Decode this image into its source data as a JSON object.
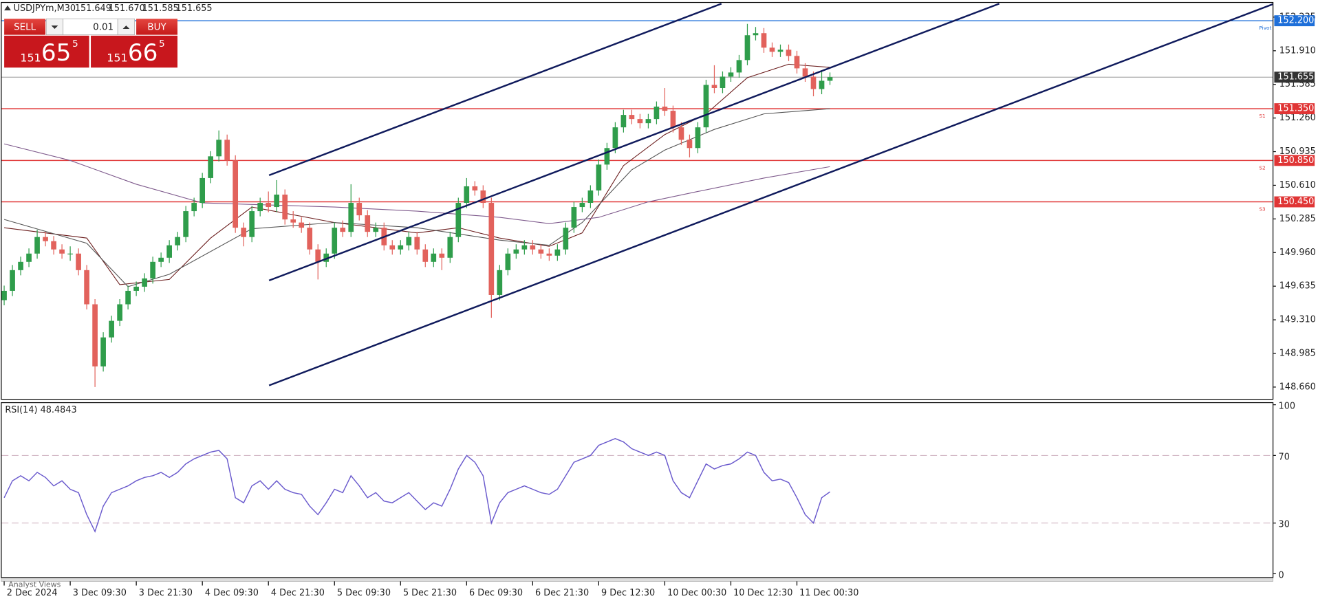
{
  "header": {
    "symbol": "USDJPYm,M30",
    "quote": [
      "151.649",
      "151.670",
      "151.585",
      "151.655"
    ]
  },
  "trade_panel": {
    "sell": "SELL",
    "buy": "BUY",
    "lot": "0.01",
    "bid": [
      "151",
      "65",
      "5"
    ],
    "ask": [
      "151",
      "66",
      "5"
    ]
  },
  "tab": "Analyst Views",
  "chart_data": {
    "type": "candlestick",
    "xlim": [
      -0.3,
      153.6
    ],
    "ylim": [
      148.546,
      152.251
    ],
    "xticks": [
      {
        "value": 0,
        "label": "2 Dec 2024"
      },
      {
        "value": 8,
        "label": "3 Dec 09:30"
      },
      {
        "value": 16,
        "label": "3 Dec 21:30"
      },
      {
        "value": 24,
        "label": "4 Dec 09:30"
      },
      {
        "value": 32,
        "label": "4 Dec 21:30"
      },
      {
        "value": 40,
        "label": "5 Dec 09:30"
      },
      {
        "value": 48,
        "label": "5 Dec 21:30"
      },
      {
        "value": 56,
        "label": "6 Dec 09:30"
      },
      {
        "value": 64,
        "label": "6 Dec 21:30"
      },
      {
        "value": 72,
        "label": "9 Dec 12:30"
      },
      {
        "value": 80,
        "label": "10 Dec 00:30"
      },
      {
        "value": 88,
        "label": "10 Dec 12:30"
      },
      {
        "value": 96,
        "label": "11 Dec 00:30"
      }
    ],
    "yticks": [
      {
        "value": 152.235,
        "label": "152.235"
      },
      {
        "value": 151.91,
        "label": "151.910"
      },
      {
        "value": 151.585,
        "label": "151.585"
      },
      {
        "value": 151.26,
        "label": "151.260"
      },
      {
        "value": 150.935,
        "label": "150.935"
      },
      {
        "value": 150.61,
        "label": "150.610"
      },
      {
        "value": 150.285,
        "label": "150.285"
      },
      {
        "value": 149.96,
        "label": "149.960"
      },
      {
        "value": 149.635,
        "label": "149.635"
      },
      {
        "value": 149.31,
        "label": "149.310"
      },
      {
        "value": 148.985,
        "label": "148.985"
      },
      {
        "value": 148.66,
        "label": "148.660"
      }
    ],
    "colors": {
      "up": "#2f9d4b",
      "down": "#e2625c"
    },
    "candles": {
      "open": [
        149.5,
        149.59,
        149.79,
        149.87,
        149.95,
        150.11,
        150.07,
        149.99,
        149.95,
        149.95,
        149.79,
        149.46,
        148.86,
        149.14,
        149.3,
        149.46,
        149.59,
        149.63,
        149.71,
        149.87,
        149.91,
        150.03,
        150.11,
        150.36,
        150.44,
        150.68,
        150.89,
        151.05,
        150.85,
        150.2,
        150.11,
        150.36,
        150.44,
        150.4,
        150.52,
        150.28,
        150.25,
        150.2,
        149.99,
        149.87,
        149.95,
        150.2,
        150.16,
        150.44,
        150.32,
        150.16,
        150.2,
        150.03,
        149.99,
        150.03,
        150.11,
        149.99,
        149.87,
        149.95,
        149.91,
        150.11,
        150.44,
        150.6,
        150.56,
        150.44,
        149.55,
        149.79,
        149.95,
        149.99,
        150.03,
        149.99,
        149.95,
        149.93,
        149.99,
        150.2,
        150.4,
        150.44,
        150.56,
        150.81,
        150.97,
        151.17,
        151.29,
        151.25,
        151.21,
        151.25,
        151.37,
        151.33,
        151.17,
        151.05,
        150.97,
        151.17,
        151.58,
        151.55,
        151.66,
        151.7,
        151.82,
        152.06,
        152.08,
        151.94,
        151.9,
        151.92,
        151.86,
        151.74,
        151.66,
        151.54,
        151.62
      ],
      "high": [
        149.64,
        149.84,
        149.92,
        150.0,
        150.18,
        150.16,
        150.12,
        150.04,
        150.02,
        150.0,
        149.84,
        149.51,
        149.19,
        149.35,
        149.51,
        149.64,
        149.68,
        149.76,
        149.92,
        149.96,
        150.08,
        150.16,
        150.41,
        150.49,
        150.73,
        150.94,
        151.14,
        151.1,
        150.9,
        150.25,
        150.41,
        150.49,
        150.55,
        150.66,
        150.57,
        150.36,
        150.3,
        150.25,
        150.04,
        150.0,
        150.25,
        150.27,
        150.62,
        150.49,
        150.37,
        150.25,
        150.25,
        150.08,
        150.08,
        150.16,
        150.16,
        150.04,
        150.0,
        150.0,
        150.16,
        150.49,
        150.68,
        150.65,
        150.61,
        150.49,
        149.84,
        150.0,
        150.04,
        150.08,
        150.08,
        150.04,
        150.0,
        150.04,
        150.25,
        150.45,
        150.49,
        150.61,
        150.86,
        151.02,
        151.22,
        151.34,
        151.34,
        151.3,
        151.3,
        151.42,
        151.55,
        151.38,
        151.22,
        151.1,
        151.22,
        151.63,
        151.77,
        151.71,
        151.75,
        151.87,
        152.17,
        152.14,
        152.13,
        151.99,
        151.97,
        151.97,
        151.91,
        151.79,
        151.71,
        151.72,
        151.7
      ],
      "low": [
        149.45,
        149.54,
        149.74,
        149.82,
        149.9,
        150.02,
        149.94,
        149.9,
        149.88,
        149.74,
        149.41,
        148.66,
        148.81,
        149.09,
        149.25,
        149.41,
        149.54,
        149.58,
        149.66,
        149.82,
        149.86,
        149.98,
        150.06,
        150.31,
        150.39,
        150.63,
        150.84,
        150.8,
        150.15,
        150.02,
        150.06,
        150.31,
        150.35,
        150.35,
        150.23,
        150.2,
        150.15,
        149.94,
        149.7,
        149.82,
        149.9,
        150.11,
        150.11,
        150.27,
        150.11,
        150.11,
        149.98,
        149.94,
        149.94,
        149.98,
        149.94,
        149.82,
        149.82,
        149.79,
        149.86,
        150.06,
        150.39,
        150.51,
        150.39,
        149.33,
        149.5,
        149.74,
        149.9,
        149.94,
        149.94,
        149.9,
        149.88,
        149.88,
        149.94,
        150.15,
        150.35,
        150.39,
        150.51,
        150.76,
        150.92,
        151.12,
        151.2,
        151.16,
        151.16,
        151.2,
        151.28,
        151.12,
        151.0,
        150.88,
        150.92,
        151.12,
        151.5,
        151.5,
        151.61,
        151.65,
        151.77,
        152.01,
        151.89,
        151.85,
        151.85,
        151.81,
        151.69,
        151.61,
        151.47,
        151.49,
        151.58
      ],
      "close": [
        149.59,
        149.79,
        149.87,
        149.95,
        150.11,
        150.07,
        149.99,
        149.95,
        149.95,
        149.79,
        149.46,
        148.86,
        149.14,
        149.3,
        149.46,
        149.59,
        149.63,
        149.71,
        149.87,
        149.91,
        150.03,
        150.11,
        150.36,
        150.44,
        150.68,
        150.89,
        151.05,
        150.85,
        150.2,
        150.11,
        150.36,
        150.44,
        150.4,
        150.52,
        150.28,
        150.25,
        150.2,
        149.99,
        149.87,
        149.95,
        150.2,
        150.16,
        150.44,
        150.32,
        150.16,
        150.2,
        150.03,
        149.99,
        150.03,
        150.11,
        149.99,
        149.87,
        149.95,
        149.91,
        150.11,
        150.44,
        150.6,
        150.56,
        150.44,
        149.55,
        149.79,
        149.95,
        149.99,
        150.03,
        149.99,
        149.95,
        149.93,
        149.99,
        150.2,
        150.4,
        150.44,
        150.56,
        150.81,
        150.97,
        151.17,
        151.29,
        151.25,
        151.21,
        151.25,
        151.37,
        151.33,
        151.17,
        151.05,
        150.97,
        151.17,
        151.58,
        151.55,
        151.66,
        151.7,
        151.82,
        152.06,
        152.08,
        151.94,
        151.9,
        151.92,
        151.86,
        151.74,
        151.66,
        151.54,
        151.62,
        151.655
      ]
    },
    "moving_averages": [
      {
        "color": "#6b1d1d",
        "x": [
          0,
          10,
          14,
          20,
          25,
          30,
          40,
          50,
          55,
          60,
          66,
          70,
          75,
          80,
          85,
          90,
          95,
          100
        ],
        "values": [
          150.2,
          150.1,
          149.65,
          149.7,
          150.1,
          150.4,
          150.25,
          150.15,
          150.2,
          150.1,
          150.02,
          150.15,
          150.8,
          151.1,
          151.3,
          151.65,
          151.78,
          151.75
        ]
      },
      {
        "color": "#555555",
        "x": [
          0,
          10,
          15,
          20,
          30,
          40,
          50,
          60,
          66,
          70,
          76,
          80,
          86,
          92,
          100
        ],
        "values": [
          150.28,
          150.05,
          149.63,
          149.75,
          150.19,
          150.25,
          150.2,
          150.08,
          150.03,
          150.25,
          150.76,
          150.95,
          151.15,
          151.3,
          151.35
        ]
      },
      {
        "color": "#7e5a8c",
        "x": [
          0,
          8,
          16,
          24,
          32,
          40,
          50,
          60,
          66,
          72,
          78,
          84,
          92,
          100
        ],
        "values": [
          151.01,
          150.85,
          150.62,
          150.44,
          150.42,
          150.4,
          150.36,
          150.3,
          150.24,
          150.3,
          150.45,
          150.55,
          150.68,
          150.79
        ]
      }
    ],
    "trend_lines": [
      {
        "color": "#0f1a5c",
        "x": [
          32.08,
          86.86
        ],
        "values": [
          150.707,
          152.365
        ]
      },
      {
        "color": "#0f1a5c",
        "x": [
          32.08,
          120.5
        ],
        "values": [
          149.69,
          152.365
        ]
      },
      {
        "color": "#0f1a5c",
        "x": [
          32.08,
          153.8
        ],
        "values": [
          148.676,
          152.365
        ]
      }
    ],
    "levels": [
      {
        "name": "Pivot",
        "color": "#1e6fd9",
        "value": {
          "value": 152.2,
          "label": "152.200"
        }
      },
      {
        "name": "S1",
        "color": "#e03535",
        "value": {
          "value": 151.35,
          "label": "151.350"
        }
      },
      {
        "name": "S2",
        "color": "#e03535",
        "value": {
          "value": 150.85,
          "label": "150.850"
        }
      },
      {
        "name": "S3",
        "color": "#e03535",
        "value": {
          "value": 150.45,
          "label": "150.450"
        }
      }
    ],
    "current_price": {
      "color": "#333333",
      "value": {
        "value": 151.655,
        "label": "151.655"
      }
    },
    "rsi": {
      "title": "RSI(14)",
      "color": "#6a5acd",
      "ylim": [
        0,
        100
      ],
      "yticks": [
        0,
        30,
        70,
        100
      ],
      "levels": [
        30,
        70
      ],
      "values": [
        45,
        55,
        58,
        55,
        60,
        57,
        52,
        55,
        50,
        48,
        35,
        25,
        40,
        48,
        50,
        52,
        55,
        57,
        58,
        60,
        57,
        60,
        65,
        68,
        70,
        72,
        73,
        68,
        45,
        42,
        52,
        55,
        50,
        55,
        50,
        48,
        47,
        40,
        35,
        42,
        50,
        48,
        58,
        52,
        45,
        48,
        43,
        42,
        45,
        48,
        43,
        38,
        42,
        40,
        50,
        62,
        70,
        66,
        58,
        30,
        42,
        48,
        50,
        52,
        50,
        48,
        47,
        50,
        58,
        66,
        68,
        70,
        76,
        78,
        80,
        78,
        74,
        72,
        70,
        72,
        70,
        55,
        48,
        45,
        55,
        65,
        62,
        64,
        65,
        68,
        72,
        70,
        60,
        55,
        56,
        54,
        45,
        35,
        30,
        45,
        48.4843
      ]
    }
  }
}
